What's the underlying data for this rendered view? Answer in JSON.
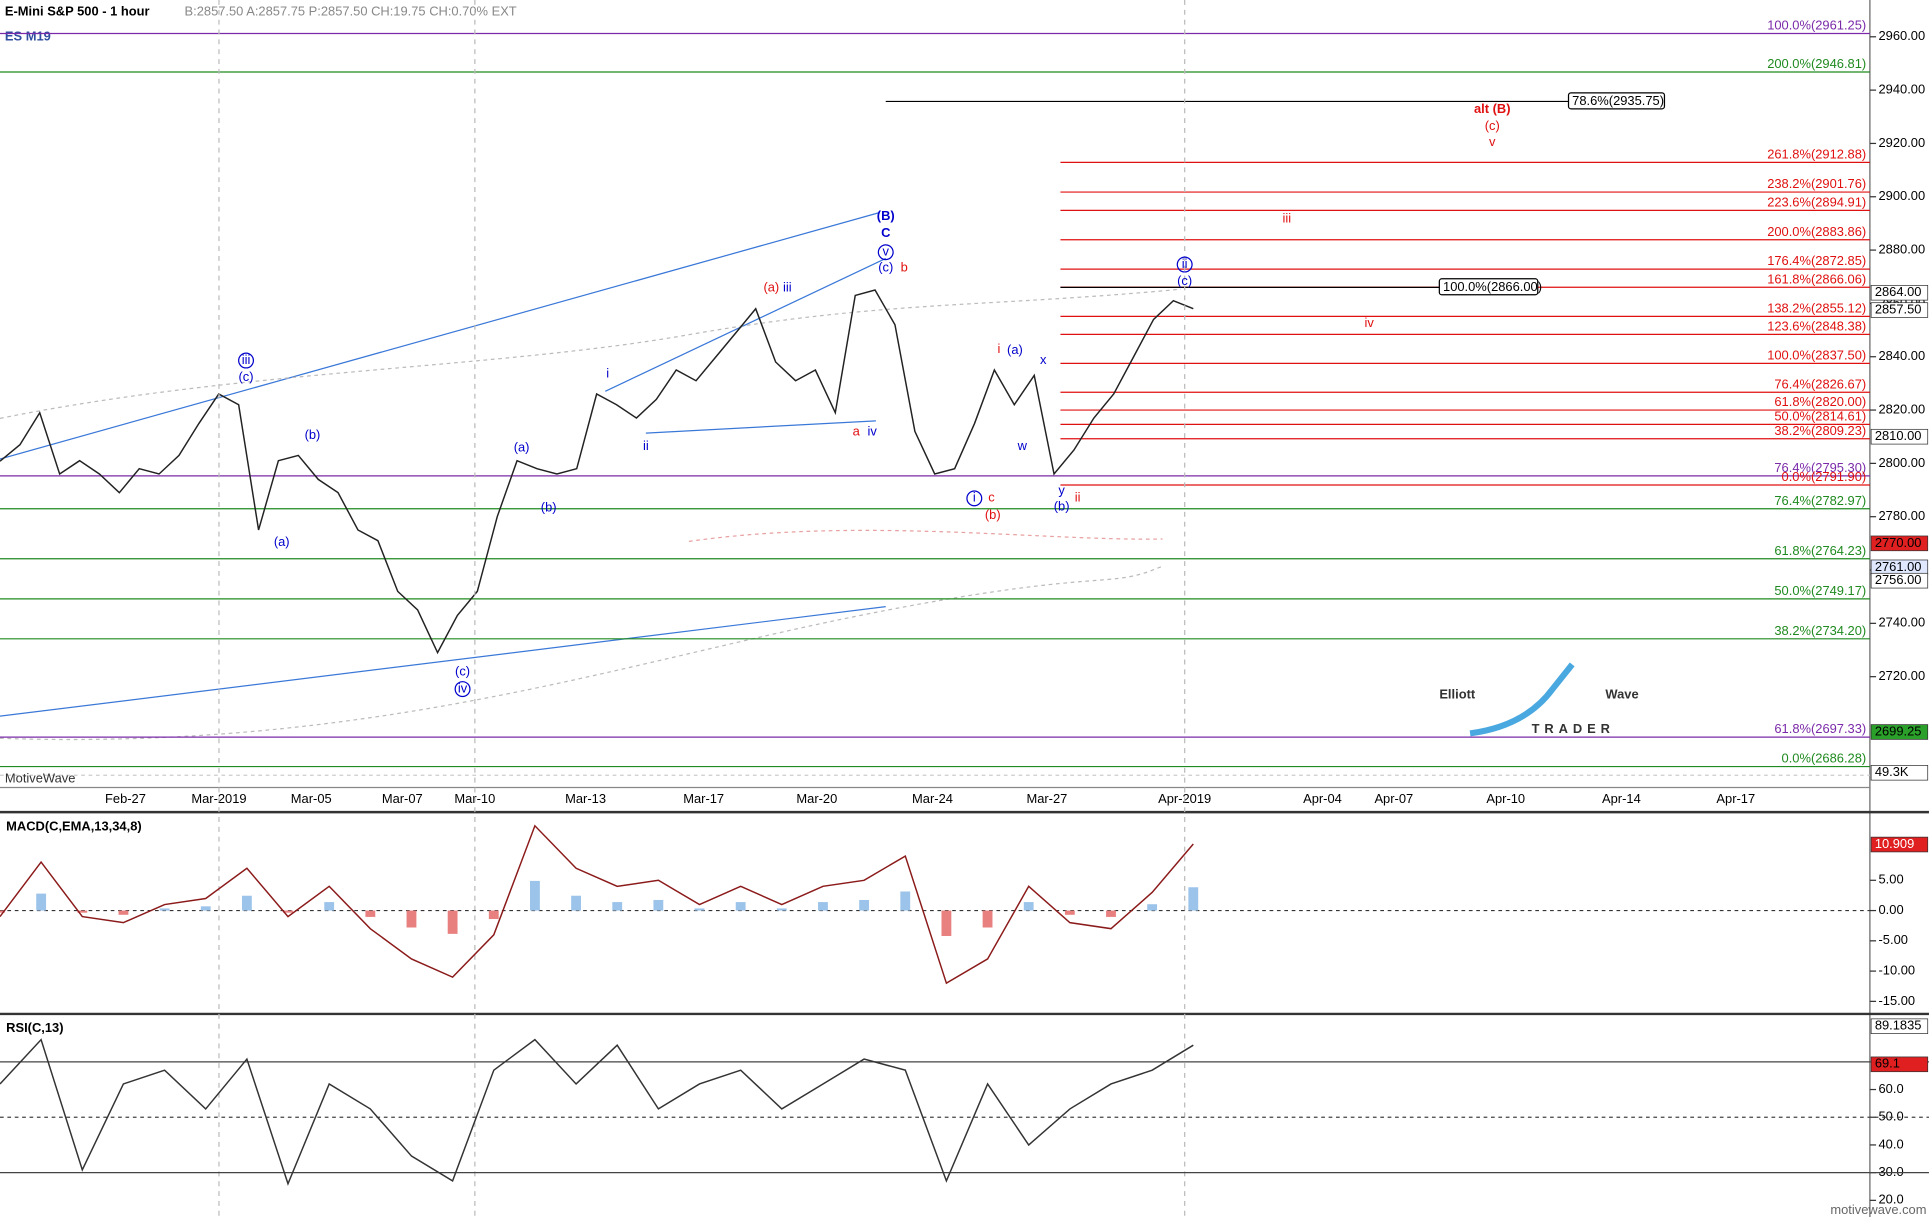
{
  "header": {
    "symbol_title": "E-Mini S&P 500 - 1 hour",
    "quote": "B:2857.50  A:2857.75  P:2857.50  CH:19.75  CH:0.70%  EXT",
    "contract": "ES M19",
    "platform": "MotiveWave",
    "footer": "motivewave.com"
  },
  "logo": {
    "part1": "Elliott",
    "part2": "Wave",
    "part3": "TRADER"
  },
  "chart_data": [
    {
      "type": "line",
      "color": "#222222",
      "x_labels": [
        "Feb-27",
        "Mar-2019",
        "Mar-05",
        "Mar-07",
        "Mar-10",
        "Mar-13",
        "Mar-17",
        "Mar-20",
        "Mar-24",
        "Mar-27",
        "Apr-2019",
        "Apr-04",
        "Apr-07",
        "Apr-10",
        "Apr-14",
        "Apr-17"
      ],
      "values": [
        2800.8,
        2807,
        2819,
        2796,
        2801,
        2796,
        2789,
        2798,
        2796,
        2803,
        2815,
        2826,
        2822,
        2775,
        2801,
        2803,
        2794,
        2789,
        2775,
        2771,
        2752,
        2745,
        2729,
        2743,
        2752,
        2780,
        2801,
        2798,
        2796,
        2798,
        2826,
        2822,
        2817,
        2824,
        2835,
        2831,
        2840,
        2849,
        2858,
        2838,
        2831,
        2835,
        2819,
        2863,
        2865,
        2852,
        2812,
        2796,
        2798,
        2815,
        2835,
        2822,
        2833,
        2796,
        2805,
        2817,
        2826,
        2840,
        2854,
        2861,
        2858
      ],
      "ylim": [
        2671.5,
        2973.8
      ],
      "yticks": [
        {
          "value": 2720,
          "label": "2720.00"
        },
        {
          "value": 2740,
          "label": "2740.00"
        },
        {
          "value": 2760,
          "label": "2760.00"
        },
        {
          "value": 2780,
          "label": "2780.00"
        },
        {
          "value": 2800,
          "label": "2800.00"
        },
        {
          "value": 2820,
          "label": "2820.00"
        },
        {
          "value": 2840,
          "label": "2840.00"
        },
        {
          "value": 2860,
          "label": "2860.00"
        },
        {
          "value": 2880,
          "label": "2880.00"
        },
        {
          "value": 2900,
          "label": "2900.00"
        },
        {
          "value": 2920,
          "label": "2920.00"
        },
        {
          "value": 2940,
          "label": "2940.00"
        },
        {
          "value": 2960,
          "label": "2960.00"
        }
      ],
      "levels": [
        {
          "label": "100.0%(2961.25)",
          "value": 2961.25,
          "color": "#7a2aa8"
        },
        {
          "label": "200.0%(2946.81)",
          "value": 2946.81,
          "color": "#1f8a1f"
        },
        {
          "label": "78.6%(2935.75)",
          "value": 2935.75,
          "color": "#000000",
          "boxed": true
        },
        {
          "label": "261.8%(2912.88)",
          "value": 2912.88,
          "color": "#e01010"
        },
        {
          "label": "238.2%(2901.76)",
          "value": 2901.76,
          "color": "#e01010"
        },
        {
          "label": "223.6%(2894.91)",
          "value": 2894.91,
          "color": "#e01010"
        },
        {
          "label": "200.0%(2883.86)",
          "value": 2883.86,
          "color": "#e01010"
        },
        {
          "label": "176.4%(2872.85)",
          "value": 2872.85,
          "color": "#e01010"
        },
        {
          "label": "161.8%(2866.06)",
          "value": 2866.06,
          "color": "#e01010"
        },
        {
          "label": "100.0%(2866.00)",
          "value": 2866.0,
          "color": "#000000",
          "boxed": true
        },
        {
          "label": "138.2%(2855.12)",
          "value": 2855.12,
          "color": "#e01010"
        },
        {
          "label": "123.6%(2848.38)",
          "value": 2848.38,
          "color": "#e01010"
        },
        {
          "label": "100.0%(2837.50)",
          "value": 2837.5,
          "color": "#e01010"
        },
        {
          "label": "76.4%(2826.67)",
          "value": 2826.67,
          "color": "#e01010"
        },
        {
          "label": "61.8%(2820.00)",
          "value": 2820.0,
          "color": "#e01010"
        },
        {
          "label": "50.0%(2814.61)",
          "value": 2814.61,
          "color": "#e01010"
        },
        {
          "label": "38.2%(2809.23)",
          "value": 2809.23,
          "color": "#e01010"
        },
        {
          "label": "76.4%(2795.30)",
          "value": 2795.3,
          "color": "#7a2aa8"
        },
        {
          "label": "0.0%(2791.90)",
          "value": 2791.9,
          "color": "#e01010"
        },
        {
          "label": "76.4%(2782.97)",
          "value": 2782.97,
          "color": "#1f8a1f"
        },
        {
          "label": "61.8%(2764.23)",
          "value": 2764.23,
          "color": "#1f8a1f"
        },
        {
          "label": "50.0%(2749.17)",
          "value": 2749.17,
          "color": "#1f8a1f"
        },
        {
          "label": "38.2%(2734.20)",
          "value": 2734.2,
          "color": "#1f8a1f"
        },
        {
          "label": "61.8%(2697.33)",
          "value": 2697.33,
          "color": "#7a2aa8"
        },
        {
          "label": "0.0%(2686.28)",
          "value": 2686.28,
          "color": "#1f8a1f"
        }
      ],
      "price_flags": [
        {
          "value": 2864,
          "label": "2864.00",
          "color": "#ffffff"
        },
        {
          "value": 2857.5,
          "label": "2857.50",
          "color": "#ffffff"
        },
        {
          "value": 2810,
          "label": "2810.00",
          "color": "#ffffff"
        },
        {
          "value": 2770,
          "label": "2770.00",
          "color": "#e02020"
        },
        {
          "value": 2761,
          "label": "2761.00",
          "color": "#dfe8ff"
        },
        {
          "value": 2756,
          "label": "2756.00",
          "color": "#ffffff"
        },
        {
          "value": 2699.25,
          "label": "2699.25",
          "color": "#2aa02a"
        }
      ],
      "volume_label": "49.3K",
      "wave_labels": [
        {
          "text": "(B)",
          "color": "#0000cc",
          "bold": true
        },
        {
          "text": "C",
          "color": "#0000cc",
          "bold": true
        },
        {
          "text": "v",
          "color": "#0000cc",
          "circled": true
        },
        {
          "text": "(c)",
          "color": "#0000cc"
        },
        {
          "text": "b",
          "color": "#e01010"
        },
        {
          "text": "(a)",
          "color": "#e01010"
        },
        {
          "text": "iii",
          "color": "#0000cc"
        },
        {
          "text": "i",
          "color": "#0000cc"
        },
        {
          "text": "ii",
          "color": "#0000cc"
        },
        {
          "text": "a",
          "color": "#e01010"
        },
        {
          "text": "iv",
          "color": "#0000cc"
        },
        {
          "text": "iii",
          "color": "#0000cc",
          "circled": true
        },
        {
          "text": "(c)",
          "color": "#0000cc"
        },
        {
          "text": "(b)",
          "color": "#0000cc"
        },
        {
          "text": "(a)",
          "color": "#0000cc"
        },
        {
          "text": "(a)",
          "color": "#0000cc"
        },
        {
          "text": "(b)",
          "color": "#0000cc"
        },
        {
          "text": "(c)",
          "color": "#0000cc"
        },
        {
          "text": "iv",
          "color": "#0000cc",
          "circled": true
        },
        {
          "text": "i",
          "color": "#e01010"
        },
        {
          "text": "(a)",
          "color": "#0000cc"
        },
        {
          "text": "x",
          "color": "#0000cc"
        },
        {
          "text": "w",
          "color": "#0000cc"
        },
        {
          "text": "i",
          "color": "#0000cc",
          "circled": true
        },
        {
          "text": "c",
          "color": "#e01010"
        },
        {
          "text": "(b)",
          "color": "#e01010"
        },
        {
          "text": "y",
          "color": "#0000cc"
        },
        {
          "text": "(b)",
          "color": "#0000cc"
        },
        {
          "text": "ii",
          "color": "#e01010"
        },
        {
          "text": "ii",
          "color": "#0000cc",
          "circled": true
        },
        {
          "text": "(c)",
          "color": "#0000cc"
        },
        {
          "text": "alt (B)",
          "color": "#e01010",
          "bold": true
        },
        {
          "text": "(c)",
          "color": "#e01010"
        },
        {
          "text": "v",
          "color": "#e01010"
        },
        {
          "text": "iii",
          "color": "#e01010"
        },
        {
          "text": "iv",
          "color": "#e01010"
        }
      ]
    },
    {
      "type": "macd",
      "title": "MACD(C,EMA,13,34,8)",
      "color": "#8b1a1a",
      "values": [
        -1,
        8,
        -1,
        -2,
        1,
        2,
        7,
        -1,
        4,
        -3,
        -8,
        -11,
        -4,
        14,
        7,
        4,
        5,
        1,
        4,
        1,
        4,
        5,
        9,
        -12,
        -8,
        4,
        -2,
        -3,
        3,
        11
      ],
      "ylim": [
        -16.67,
        15.65
      ],
      "yticks": [
        {
          "value": -15,
          "label": "-15.00"
        },
        {
          "value": -10,
          "label": "-10.00"
        },
        {
          "value": -5,
          "label": "-5.00"
        },
        {
          "value": 0,
          "label": "0.00"
        },
        {
          "value": 5,
          "label": "5.00"
        }
      ],
      "flag": 10.909
    },
    {
      "type": "rsi",
      "title": "RSI(C,13)",
      "color": "#333333",
      "values": [
        62,
        78,
        31,
        62,
        67,
        53,
        71,
        26,
        62,
        53,
        36,
        27,
        67,
        78,
        62,
        76,
        53,
        62,
        67,
        53,
        62,
        71,
        67,
        27,
        62,
        40,
        53,
        62,
        67,
        76
      ],
      "ylim": [
        14,
        86.4
      ],
      "yticks": [
        {
          "value": 20,
          "label": "20.0"
        },
        {
          "value": 30,
          "label": "30.0"
        },
        {
          "value": 40,
          "label": "40.0"
        },
        {
          "value": 50,
          "label": "50.0"
        },
        {
          "value": 60,
          "label": "60.0"
        }
      ],
      "ref_lines": [
        70,
        50,
        30
      ],
      "flags": [
        {
          "value": 89.1835,
          "label": "89.1835"
        },
        {
          "value": 69.1,
          "label": "69.1"
        }
      ]
    }
  ]
}
